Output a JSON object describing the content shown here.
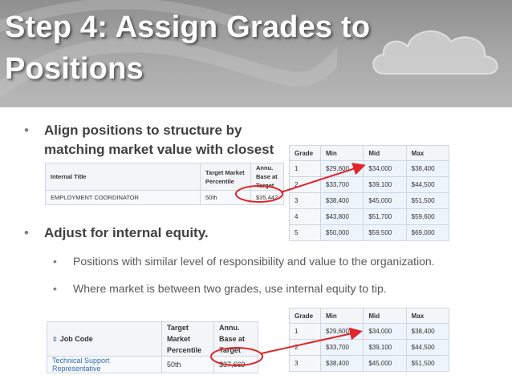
{
  "slide": {
    "title_line1": "Step 4: Assign Grades to",
    "title_line2": "Positions"
  },
  "bullets": {
    "b1": {
      "marker": "•",
      "text": "Align positions to structure by matching market value with closest range midpoint"
    },
    "b2": {
      "marker": "•",
      "text": "Adjust for internal equity."
    },
    "sub1": {
      "marker": "•",
      "text": "Positions with similar level of responsibility and value to the organization."
    },
    "sub2": {
      "marker": "•",
      "text": "Where market is between two grades, use internal equity to tip."
    }
  },
  "grade_table_top": {
    "headers": [
      "Grade",
      "Min",
      "Mid",
      "Max"
    ],
    "rows": [
      [
        "1",
        "$29,600",
        "$34,000",
        "$38,400"
      ],
      [
        "2",
        "$33,700",
        "$39,100",
        "$44,500"
      ],
      [
        "3",
        "$38,400",
        "$45,000",
        "$51,500"
      ],
      [
        "4",
        "$43,800",
        "$51,700",
        "$59,600"
      ],
      [
        "5",
        "$50,000",
        "$59,500",
        "$69,000"
      ]
    ]
  },
  "position_table_1": {
    "headers": [
      "Internal Title",
      "Target Market Percentile",
      "Annu. Base at Target"
    ],
    "row": [
      "EMPLOYMENT COORDINATOR",
      "50th",
      "$35,442"
    ]
  },
  "position_table_2": {
    "headers": [
      "Job Code",
      "Target Market Percentile",
      "Annu. Base at Target"
    ],
    "sort_icon": "⇳",
    "row": [
      "Technical Support Representative",
      "50th",
      "$37,669"
    ]
  },
  "grade_table_bottom": {
    "headers": [
      "Grade",
      "Min",
      "Mid",
      "Max"
    ],
    "rows": [
      [
        "1",
        "$29,600",
        "$34,000",
        "$38,400"
      ],
      [
        "2",
        "$33,700",
        "$39,100",
        "$44,500"
      ],
      [
        "3",
        "$38,400",
        "$45,000",
        "$51,500"
      ]
    ]
  },
  "colors": {
    "title": "#ffffff",
    "annotation": "#e0262b",
    "link": "#2e6db5"
  }
}
